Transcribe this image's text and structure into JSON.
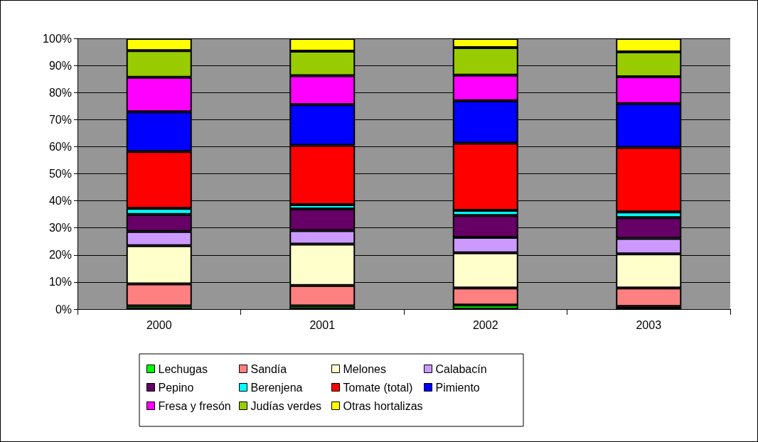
{
  "chart_data": {
    "type": "bar",
    "stacked": true,
    "categories": [
      "2000",
      "2001",
      "2002",
      "2003"
    ],
    "series": [
      {
        "name": "Lechugas",
        "color": "#00ff00",
        "values": [
          1.2,
          1.2,
          1.5,
          1.0
        ]
      },
      {
        "name": "Sandía",
        "color": "#ff8080",
        "values": [
          8.1,
          7.5,
          6.3,
          6.8
        ]
      },
      {
        "name": "Melones",
        "color": "#ffffcc",
        "values": [
          14.1,
          15.3,
          13.0,
          12.6
        ]
      },
      {
        "name": "Calabacín",
        "color": "#cc99ff",
        "values": [
          5.3,
          5.0,
          5.7,
          5.7
        ]
      },
      {
        "name": "Pepino",
        "color": "#660066",
        "values": [
          6.3,
          8.0,
          8.1,
          7.7
        ]
      },
      {
        "name": "Berenjena",
        "color": "#00ffff",
        "values": [
          2.2,
          1.6,
          1.9,
          2.1
        ]
      },
      {
        "name": "Tomate (total)",
        "color": "#ff0000",
        "values": [
          21.0,
          21.9,
          24.8,
          23.8
        ]
      },
      {
        "name": "Pimiento",
        "color": "#0000ff",
        "values": [
          14.7,
          15.0,
          15.7,
          16.2
        ]
      },
      {
        "name": "Fresa y fresón",
        "color": "#ff00ff",
        "values": [
          12.7,
          10.7,
          9.4,
          9.9
        ]
      },
      {
        "name": "Judías verdes",
        "color": "#99cc00",
        "values": [
          9.9,
          9.1,
          10.2,
          9.2
        ]
      },
      {
        "name": "Otras hortalizas",
        "color": "#ffff00",
        "values": [
          4.5,
          4.7,
          3.4,
          5.0
        ]
      }
    ],
    "ylim": [
      0,
      100
    ],
    "yticks": [
      {
        "value": 0,
        "label": "0%"
      },
      {
        "value": 10,
        "label": "10%"
      },
      {
        "value": 20,
        "label": "20%"
      },
      {
        "value": 30,
        "label": "30%"
      },
      {
        "value": 40,
        "label": "40%"
      },
      {
        "value": 50,
        "label": "50%"
      },
      {
        "value": 60,
        "label": "60%"
      },
      {
        "value": 70,
        "label": "70%"
      },
      {
        "value": 80,
        "label": "80%"
      },
      {
        "value": 90,
        "label": "90%"
      },
      {
        "value": 100,
        "label": "100%"
      }
    ],
    "grid": "y",
    "legend": "bottom"
  }
}
